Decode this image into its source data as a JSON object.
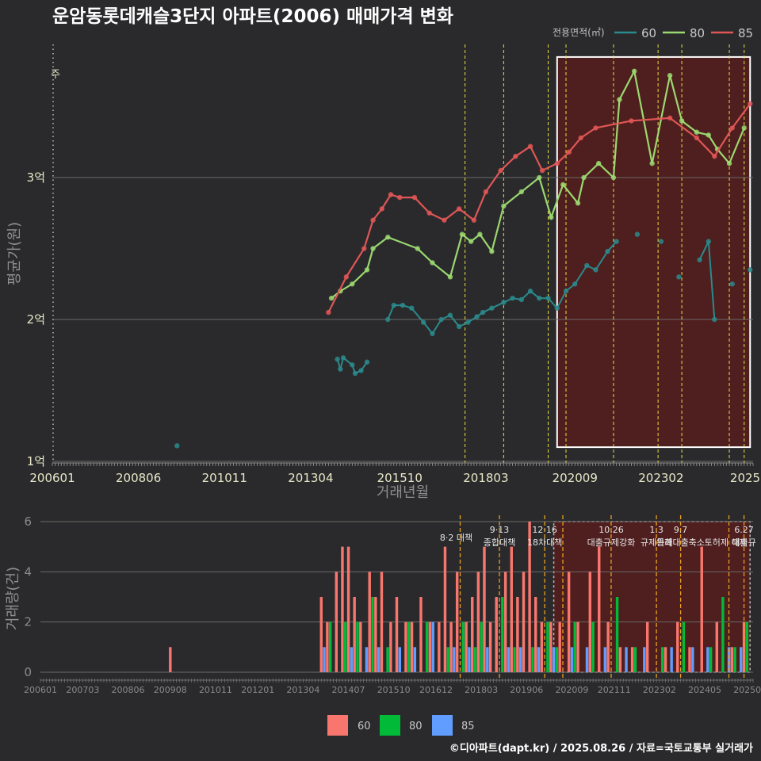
{
  "title": "운암동롯데캐슬3단지 아파트(2006) 매매가격 변화",
  "footer": "©디아파트(dapt.kr) / 2025.08.26 / 자료=국토교통부 실거래가",
  "colors": {
    "60": "#2a8a8c",
    "80": "#9bd870",
    "85": "#e05656",
    "bar60": "#f8766d",
    "bar80": "#00ba38",
    "bar85": "#619cff",
    "policy": "#e8e040",
    "policy_bottom": "#e8a020"
  },
  "top_legend": {
    "title": "전용면적(㎡)",
    "items": [
      "60",
      "80",
      "85"
    ]
  },
  "bottom_legend": {
    "items": [
      "60",
      "80",
      "85"
    ]
  },
  "chart_data": [
    {
      "type": "line",
      "title": "운암동롯데캐슬3단지 아파트(2006) 매매가격 변화",
      "xlabel": "거래년월",
      "ylabel": "평균가(원)",
      "x_range": [
        "2006-01",
        "2025-08"
      ],
      "ylim": [
        1,
        3.95
      ],
      "y_ticks": [
        {
          "v": 1,
          "label": "1억"
        },
        {
          "v": 2,
          "label": "2억"
        },
        {
          "v": 3,
          "label": "3억"
        }
      ],
      "x_ticks": [
        "200601",
        "200806",
        "201011",
        "201304",
        "201510",
        "201803",
        "202009",
        "202302",
        "2025"
      ],
      "highlight": {
        "from": "2020-03",
        "to": "2025-08",
        "ymin": 1.1,
        "ymax": 3.85
      },
      "policy_lines": [
        "2017-08",
        "2018-09",
        "2019-12",
        "2020-06",
        "2021-10",
        "2023-01",
        "2023-09",
        "2025-01",
        "2025-06"
      ],
      "side_label": "주",
      "series": [
        {
          "name": "60",
          "points": [
            [
              "2009-07",
              1.11
            ],
            [
              "2014-01",
              1.72
            ],
            [
              "2014-02",
              1.65
            ],
            [
              "2014-03",
              1.73
            ],
            [
              "2014-06",
              1.68
            ],
            [
              "2014-07",
              1.62
            ],
            [
              "2014-09",
              1.64
            ],
            [
              "2014-11",
              1.7
            ],
            [
              "2015-06",
              2.0
            ],
            [
              "2015-08",
              2.1
            ],
            [
              "2015-11",
              2.1
            ],
            [
              "2016-02",
              2.08
            ],
            [
              "2016-06",
              1.98
            ],
            [
              "2016-09",
              1.9
            ],
            [
              "2016-12",
              2.0
            ],
            [
              "2017-03",
              2.03
            ],
            [
              "2017-06",
              1.95
            ],
            [
              "2017-09",
              1.98
            ],
            [
              "2017-12",
              2.02
            ],
            [
              "2018-02",
              2.05
            ],
            [
              "2018-05",
              2.08
            ],
            [
              "2018-09",
              2.12
            ],
            [
              "2018-12",
              2.15
            ],
            [
              "2019-03",
              2.14
            ],
            [
              "2019-06",
              2.2
            ],
            [
              "2019-09",
              2.15
            ],
            [
              "2019-12",
              2.15
            ],
            [
              "2020-03",
              2.08
            ],
            [
              "2020-06",
              2.2
            ],
            [
              "2020-09",
              2.25
            ],
            [
              "2021-01",
              2.38
            ],
            [
              "2021-04",
              2.35
            ],
            [
              "2021-08",
              2.48
            ],
            [
              "2021-11",
              2.55
            ],
            [
              "2022-06",
              2.6
            ],
            [
              "2023-02",
              2.55
            ],
            [
              "2023-08",
              2.3
            ],
            [
              "2024-03",
              2.42
            ],
            [
              "2024-06",
              2.55
            ],
            [
              "2024-08",
              2.0
            ],
            [
              "2025-02",
              2.25
            ],
            [
              "2025-08",
              2.35
            ]
          ]
        },
        {
          "name": "80",
          "points": [
            [
              "2013-11",
              2.15
            ],
            [
              "2014-02",
              2.2
            ],
            [
              "2014-06",
              2.25
            ],
            [
              "2014-11",
              2.35
            ],
            [
              "2015-01",
              2.5
            ],
            [
              "2015-06",
              2.58
            ],
            [
              "2016-04",
              2.5
            ],
            [
              "2016-09",
              2.4
            ],
            [
              "2017-03",
              2.3
            ],
            [
              "2017-07",
              2.6
            ],
            [
              "2017-10",
              2.55
            ],
            [
              "2018-01",
              2.6
            ],
            [
              "2018-05",
              2.48
            ],
            [
              "2018-09",
              2.8
            ],
            [
              "2019-03",
              2.9
            ],
            [
              "2019-09",
              3.0
            ],
            [
              "2020-01",
              2.72
            ],
            [
              "2020-05",
              2.95
            ],
            [
              "2020-10",
              2.82
            ],
            [
              "2020-12",
              3.0
            ],
            [
              "2021-05",
              3.1
            ],
            [
              "2021-10",
              3.0
            ],
            [
              "2021-12",
              3.55
            ],
            [
              "2022-05",
              3.75
            ],
            [
              "2022-11",
              3.1
            ],
            [
              "2023-05",
              3.72
            ],
            [
              "2023-09",
              3.4
            ],
            [
              "2024-02",
              3.32
            ],
            [
              "2024-06",
              3.3
            ],
            [
              "2024-09",
              3.2
            ],
            [
              "2025-01",
              3.1
            ],
            [
              "2025-06",
              3.35
            ]
          ]
        },
        {
          "name": "85",
          "points": [
            [
              "2013-10",
              2.05
            ],
            [
              "2014-04",
              2.3
            ],
            [
              "2014-10",
              2.5
            ],
            [
              "2015-01",
              2.7
            ],
            [
              "2015-04",
              2.78
            ],
            [
              "2015-07",
              2.88
            ],
            [
              "2015-10",
              2.86
            ],
            [
              "2016-03",
              2.86
            ],
            [
              "2016-08",
              2.75
            ],
            [
              "2017-01",
              2.7
            ],
            [
              "2017-06",
              2.78
            ],
            [
              "2017-11",
              2.7
            ],
            [
              "2018-03",
              2.9
            ],
            [
              "2018-08",
              3.05
            ],
            [
              "2019-01",
              3.15
            ],
            [
              "2019-06",
              3.22
            ],
            [
              "2019-10",
              3.05
            ],
            [
              "2020-03",
              3.1
            ],
            [
              "2020-07",
              3.18
            ],
            [
              "2020-11",
              3.28
            ],
            [
              "2021-04",
              3.35
            ],
            [
              "2022-04",
              3.4
            ],
            [
              "2023-05",
              3.42
            ],
            [
              "2024-02",
              3.28
            ],
            [
              "2024-08",
              3.15
            ],
            [
              "2025-02",
              3.35
            ],
            [
              "2025-08",
              3.52
            ]
          ]
        }
      ]
    },
    {
      "type": "bar",
      "ylabel": "거래량(건)",
      "ylim": [
        0,
        6
      ],
      "y_ticks": [
        0,
        2,
        4,
        6
      ],
      "x_ticks": [
        "200601",
        "200703",
        "200806",
        "200908",
        "201011",
        "201201",
        "201304",
        "201407",
        "201510",
        "201612",
        "201803",
        "201906",
        "202009",
        "202111",
        "202302",
        "202405",
        "202508"
      ],
      "highlight": {
        "from": "2020-03",
        "to": "2025-08"
      },
      "policy_lines": [
        "2017-08",
        "2018-09",
        "2019-12",
        "2020-06",
        "2021-10",
        "2023-01",
        "2023-09",
        "2025-01",
        "2025-06"
      ],
      "annotations": [
        {
          "x": "2017-08",
          "lines": [
            "8·2 대책"
          ]
        },
        {
          "x": "2018-09",
          "lines": [
            "9·13",
            "종합대책"
          ]
        },
        {
          "x": "2019-12",
          "lines": [
            "12·16",
            "18차대책"
          ]
        },
        {
          "x": "2021-10",
          "lines": [
            "10.26",
            "대출규제강화"
          ]
        },
        {
          "x": "2023-01",
          "lines": [
            "1.3",
            "규제완화"
          ]
        },
        {
          "x": "2023-09",
          "lines": [
            "9.7",
            "특례대출축소"
          ]
        },
        {
          "x": "2024-12",
          "lines": [
            "",
            "토허제 해제"
          ]
        },
        {
          "x": "2025-06",
          "lines": [
            "6.27",
            "대출규"
          ]
        }
      ],
      "series": [
        {
          "name": "60",
          "values": [
            [
              "2009-08",
              1
            ],
            [
              "2013-10",
              3
            ],
            [
              "2013-12",
              2
            ],
            [
              "2014-03",
              4
            ],
            [
              "2014-05",
              5
            ],
            [
              "2014-07",
              5
            ],
            [
              "2014-09",
              3
            ],
            [
              "2014-11",
              2
            ],
            [
              "2015-02",
              4
            ],
            [
              "2015-04",
              3
            ],
            [
              "2015-06",
              4
            ],
            [
              "2015-09",
              2
            ],
            [
              "2015-11",
              3
            ],
            [
              "2016-02",
              2
            ],
            [
              "2016-04",
              2
            ],
            [
              "2016-07",
              3
            ],
            [
              "2016-10",
              2
            ],
            [
              "2017-01",
              2
            ],
            [
              "2017-03",
              5
            ],
            [
              "2017-05",
              2
            ],
            [
              "2017-07",
              4
            ],
            [
              "2017-10",
              2
            ],
            [
              "2017-12",
              3
            ],
            [
              "2018-02",
              4
            ],
            [
              "2018-04",
              5
            ],
            [
              "2018-06",
              2
            ],
            [
              "2018-08",
              3
            ],
            [
              "2018-11",
              4
            ],
            [
              "2019-01",
              5
            ],
            [
              "2019-03",
              3
            ],
            [
              "2019-05",
              4
            ],
            [
              "2019-07",
              6
            ],
            [
              "2019-09",
              3
            ],
            [
              "2019-11",
              2
            ],
            [
              "2020-02",
              2
            ],
            [
              "2020-05",
              2
            ],
            [
              "2020-08",
              4
            ],
            [
              "2020-11",
              2
            ],
            [
              "2021-03",
              4
            ],
            [
              "2021-06",
              5
            ],
            [
              "2021-09",
              2
            ],
            [
              "2022-01",
              1
            ],
            [
              "2022-05",
              1
            ],
            [
              "2022-10",
              2
            ],
            [
              "2023-04",
              1
            ],
            [
              "2023-08",
              2
            ],
            [
              "2023-12",
              1
            ],
            [
              "2024-04",
              5
            ],
            [
              "2024-09",
              2
            ],
            [
              "2025-02",
              1
            ],
            [
              "2025-06",
              2
            ]
          ]
        },
        {
          "name": "80",
          "values": [
            [
              "2014-01",
              2
            ],
            [
              "2014-06",
              2
            ],
            [
              "2014-10",
              2
            ],
            [
              "2015-03",
              3
            ],
            [
              "2015-08",
              1
            ],
            [
              "2016-03",
              2
            ],
            [
              "2016-09",
              2
            ],
            [
              "2017-04",
              1
            ],
            [
              "2017-09",
              2
            ],
            [
              "2018-01",
              1
            ],
            [
              "2018-03",
              2
            ],
            [
              "2018-10",
              3
            ],
            [
              "2019-02",
              1
            ],
            [
              "2019-08",
              1
            ],
            [
              "2020-01",
              2
            ],
            [
              "2020-04",
              1
            ],
            [
              "2020-10",
              2
            ],
            [
              "2021-04",
              2
            ],
            [
              "2021-12",
              3
            ],
            [
              "2022-06",
              1
            ],
            [
              "2023-03",
              1
            ],
            [
              "2023-10",
              2
            ],
            [
              "2024-07",
              1
            ],
            [
              "2024-11",
              3
            ],
            [
              "2025-03",
              1
            ],
            [
              "2025-07",
              2
            ]
          ]
        },
        {
          "name": "85",
          "values": [
            [
              "2013-11",
              1
            ],
            [
              "2014-08",
              1
            ],
            [
              "2015-01",
              1
            ],
            [
              "2015-05",
              1
            ],
            [
              "2015-12",
              1
            ],
            [
              "2016-05",
              1
            ],
            [
              "2016-11",
              2
            ],
            [
              "2017-06",
              1
            ],
            [
              "2017-11",
              1
            ],
            [
              "2018-05",
              1
            ],
            [
              "2018-12",
              1
            ],
            [
              "2019-04",
              1
            ],
            [
              "2019-10",
              1
            ],
            [
              "2020-03",
              1
            ],
            [
              "2020-09",
              1
            ],
            [
              "2021-02",
              1
            ],
            [
              "2021-08",
              1
            ],
            [
              "2022-03",
              1
            ],
            [
              "2022-09",
              1
            ],
            [
              "2023-06",
              1
            ],
            [
              "2024-01",
              1
            ],
            [
              "2024-06",
              1
            ],
            [
              "2025-01",
              1
            ],
            [
              "2025-05",
              1
            ]
          ]
        }
      ]
    }
  ]
}
